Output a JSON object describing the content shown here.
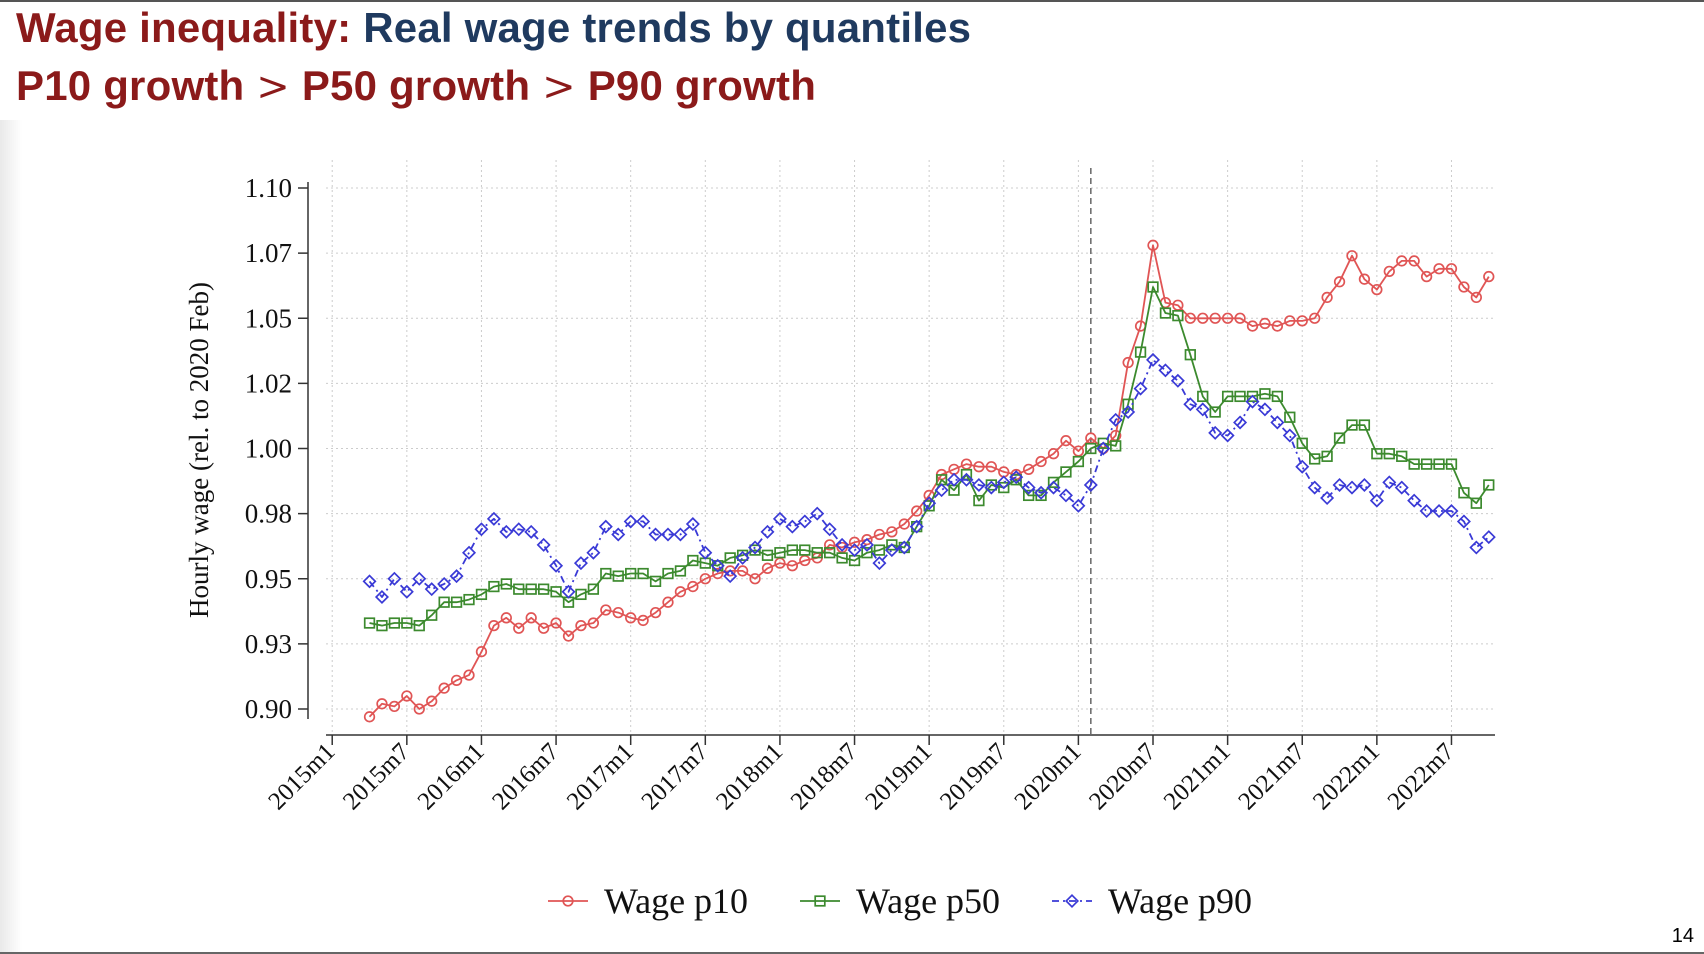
{
  "slide": {
    "title_part1": "Wage inequality:",
    "title_part2": "Real wage trends by quantiles",
    "subtitle_part1": "P10 growth",
    "subtitle_gt1": ">",
    "subtitle_part2": "P50 growth",
    "subtitle_gt2": ">",
    "subtitle_part3": "P90 growth",
    "page_number": "14"
  },
  "chart_data": {
    "type": "line",
    "ylabel": "Hourly wage (rel. to 2020 Feb)",
    "xlabel": "",
    "ylim": [
      0.895,
      1.1
    ],
    "yticks": [
      0.9,
      0.925,
      0.95,
      0.975,
      1.0,
      1.025,
      1.05,
      1.075,
      1.1
    ],
    "ytick_labels": [
      "0.90",
      "0.93",
      "0.95",
      "0.98",
      "1.00",
      "1.02",
      "1.05",
      "1.07",
      "1.10"
    ],
    "xtick_labels": [
      "2015m1",
      "2015m7",
      "2016m1",
      "2016m7",
      "2017m1",
      "2017m7",
      "2018m1",
      "2018m7",
      "2019m1",
      "2019m7",
      "2020m1",
      "2020m7",
      "2021m1",
      "2021m7",
      "2022m1",
      "2022m7"
    ],
    "x_start": "2015m4",
    "x_end": "2022m10",
    "reference_line": "2020m2",
    "grid": true,
    "legend_position": "bottom",
    "series": [
      {
        "name": "Wage p10",
        "color": "#e05555",
        "marker": "circle",
        "line": "solid",
        "values": [
          0.897,
          0.902,
          0.901,
          0.905,
          0.9,
          0.903,
          0.908,
          0.911,
          0.913,
          0.922,
          0.932,
          0.935,
          0.931,
          0.935,
          0.931,
          0.933,
          0.928,
          0.932,
          0.933,
          0.938,
          0.937,
          0.935,
          0.934,
          0.937,
          0.941,
          0.945,
          0.947,
          0.95,
          0.952,
          0.953,
          0.953,
          0.95,
          0.954,
          0.956,
          0.955,
          0.957,
          0.958,
          0.963,
          0.962,
          0.964,
          0.965,
          0.967,
          0.968,
          0.971,
          0.976,
          0.982,
          0.99,
          0.992,
          0.994,
          0.993,
          0.993,
          0.991,
          0.99,
          0.992,
          0.995,
          0.998,
          1.003,
          0.999,
          1.004,
          1.0,
          1.005,
          1.033,
          1.047,
          1.078,
          1.056,
          1.055,
          1.05,
          1.05,
          1.05,
          1.05,
          1.05,
          1.047,
          1.048,
          1.047,
          1.049,
          1.049,
          1.05,
          1.058,
          1.064,
          1.074,
          1.065,
          1.061,
          1.068,
          1.072,
          1.072,
          1.066,
          1.069,
          1.069,
          1.062,
          1.058,
          1.066
        ]
      },
      {
        "name": "Wage p50",
        "color": "#3c8a2e",
        "marker": "square",
        "line": "solid",
        "values": [
          0.933,
          0.932,
          0.933,
          0.933,
          0.932,
          0.936,
          0.941,
          0.941,
          0.942,
          0.944,
          0.947,
          0.948,
          0.946,
          0.946,
          0.946,
          0.945,
          0.941,
          0.944,
          0.946,
          0.952,
          0.951,
          0.952,
          0.952,
          0.949,
          0.952,
          0.953,
          0.957,
          0.956,
          0.955,
          0.958,
          0.959,
          0.961,
          0.959,
          0.96,
          0.961,
          0.961,
          0.96,
          0.96,
          0.958,
          0.957,
          0.96,
          0.961,
          0.963,
          0.962,
          0.97,
          0.978,
          0.988,
          0.984,
          0.99,
          0.98,
          0.986,
          0.985,
          0.988,
          0.982,
          0.982,
          0.987,
          0.991,
          0.995,
          1.0,
          1.002,
          1.001,
          1.017,
          1.037,
          1.062,
          1.052,
          1.051,
          1.036,
          1.02,
          1.014,
          1.02,
          1.02,
          1.02,
          1.021,
          1.02,
          1.012,
          1.002,
          0.996,
          0.997,
          1.004,
          1.009,
          1.009,
          0.998,
          0.998,
          0.997,
          0.994,
          0.994,
          0.994,
          0.994,
          0.983,
          0.979,
          0.986
        ]
      },
      {
        "name": "Wage p90",
        "color": "#3a3ad6",
        "marker": "diamond",
        "line": "dashdot",
        "values": [
          0.949,
          0.943,
          0.95,
          0.945,
          0.95,
          0.946,
          0.948,
          0.951,
          0.96,
          0.969,
          0.973,
          0.968,
          0.969,
          0.968,
          0.963,
          0.955,
          0.945,
          0.956,
          0.96,
          0.97,
          0.967,
          0.972,
          0.972,
          0.967,
          0.967,
          0.967,
          0.971,
          0.96,
          0.955,
          0.951,
          0.958,
          0.962,
          0.968,
          0.973,
          0.97,
          0.972,
          0.975,
          0.969,
          0.963,
          0.961,
          0.963,
          0.956,
          0.961,
          0.962,
          0.97,
          0.979,
          0.984,
          0.988,
          0.988,
          0.986,
          0.985,
          0.987,
          0.989,
          0.985,
          0.983,
          0.985,
          0.982,
          0.978,
          0.986,
          1.0,
          1.011,
          1.014,
          1.023,
          1.034,
          1.03,
          1.026,
          1.017,
          1.015,
          1.006,
          1.005,
          1.01,
          1.018,
          1.015,
          1.01,
          1.005,
          0.993,
          0.985,
          0.981,
          0.986,
          0.985,
          0.986,
          0.98,
          0.987,
          0.985,
          0.98,
          0.976,
          0.976,
          0.976,
          0.972,
          0.962,
          0.966
        ]
      }
    ]
  }
}
